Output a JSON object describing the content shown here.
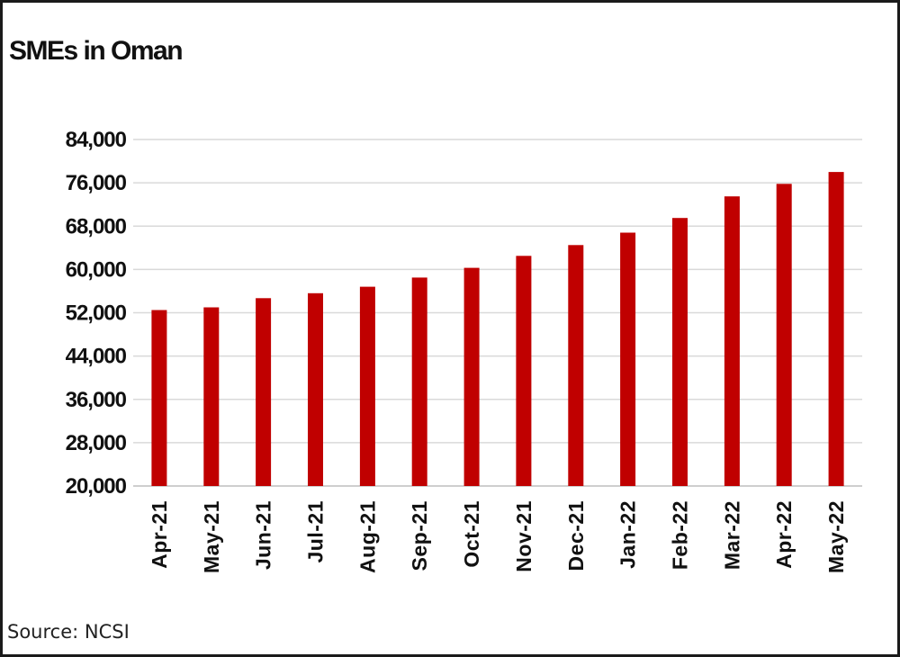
{
  "chart_data": {
    "type": "bar",
    "title": "SMEs in Oman",
    "source": "Source: NCSI",
    "xlabel": "",
    "ylabel": "",
    "categories": [
      "Apr-21",
      "May-21",
      "Jun-21",
      "Jul-21",
      "Aug-21",
      "Sep-21",
      "Oct-21",
      "Nov-21",
      "Dec-21",
      "Jan-22",
      "Feb-22",
      "Mar-22",
      "Apr-22",
      "May-22"
    ],
    "values": [
      52500,
      53000,
      54700,
      55600,
      56800,
      58500,
      60300,
      62500,
      64500,
      66800,
      69500,
      73500,
      75800,
      78000
    ],
    "ylim": [
      20000,
      84000
    ],
    "yticks": [
      20000,
      28000,
      36000,
      44000,
      52000,
      60000,
      68000,
      76000,
      84000
    ],
    "ytick_labels": [
      "20,000",
      "28,000",
      "36,000",
      "44,000",
      "52,000",
      "60,000",
      "68,000",
      "76,000",
      "84,000"
    ],
    "grid": true,
    "bar_color": "#c00000",
    "legend": "none"
  }
}
